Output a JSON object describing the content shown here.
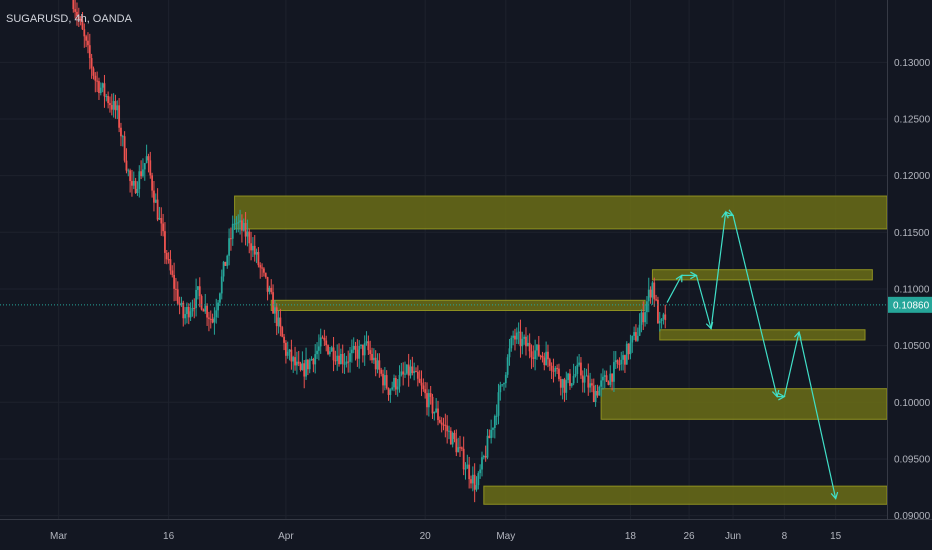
{
  "chart_data": {
    "type": "candlestick",
    "title": "SUGARUSD, 4h, OANDA",
    "ylim": [
      0.0897,
      0.1355
    ],
    "y_ticks": [
      "0.13000",
      "0.12500",
      "0.12000",
      "0.11500",
      "0.11000",
      "0.10500",
      "0.10000",
      "0.09500",
      "0.09000"
    ],
    "y_tick_values": [
      0.13,
      0.125,
      0.12,
      0.115,
      0.11,
      0.105,
      0.1,
      0.095,
      0.09
    ],
    "x_ticks": [
      "Mar",
      "16",
      "Apr",
      "20",
      "May",
      "18",
      "26",
      "Jun",
      "8",
      "15"
    ],
    "x_tick_dates": [
      "2020-03-01",
      "2020-03-16",
      "2020-04-01",
      "2020-04-20",
      "2020-05-01",
      "2020-05-18",
      "2020-05-26",
      "2020-06-01",
      "2020-06-08",
      "2020-06-15"
    ],
    "x_range": [
      "2020-02-22",
      "2020-06-22"
    ],
    "last_price": "0.10860",
    "last_price_value": 0.1086,
    "colors": {
      "background": "#131722",
      "up": "#26a69a",
      "down": "#ef5350",
      "zone_fill": "#6b6d16",
      "zone_stroke": "#8f9120",
      "projection": "#40e0c8",
      "price_line": "#26a69a"
    },
    "price_path": [
      [
        "2020-03-03",
        0.1355
      ],
      [
        "2020-03-06",
        0.1285
      ],
      [
        "2020-03-09",
        0.1255
      ],
      [
        "2020-03-11",
        0.1185
      ],
      [
        "2020-03-13",
        0.1215
      ],
      [
        "2020-03-16",
        0.112
      ],
      [
        "2020-03-18",
        0.1075
      ],
      [
        "2020-03-20",
        0.1095
      ],
      [
        "2020-03-22",
        0.1072
      ],
      [
        "2020-03-25",
        0.116
      ],
      [
        "2020-03-27",
        0.1145
      ],
      [
        "2020-03-30",
        0.109
      ],
      [
        "2020-04-01",
        0.1045
      ],
      [
        "2020-04-03",
        0.1025
      ],
      [
        "2020-04-06",
        0.1052
      ],
      [
        "2020-04-09",
        0.1038
      ],
      [
        "2020-04-12",
        0.1048
      ],
      [
        "2020-04-15",
        0.1012
      ],
      [
        "2020-04-18",
        0.1028
      ],
      [
        "2020-04-21",
        0.0995
      ],
      [
        "2020-04-24",
        0.0965
      ],
      [
        "2020-04-27",
        0.0925
      ],
      [
        "2020-04-29",
        0.0975
      ],
      [
        "2020-05-02",
        0.1058
      ],
      [
        "2020-05-05",
        0.1045
      ],
      [
        "2020-05-07",
        0.1038
      ],
      [
        "2020-05-09",
        0.1015
      ],
      [
        "2020-05-11",
        0.1028
      ],
      [
        "2020-05-13",
        0.1008
      ],
      [
        "2020-05-15",
        0.1022
      ],
      [
        "2020-05-17",
        0.1038
      ],
      [
        "2020-05-19",
        0.1062
      ],
      [
        "2020-05-21",
        0.1105
      ],
      [
        "2020-05-22",
        0.1065
      ],
      [
        "2020-05-23",
        0.1078
      ]
    ],
    "zones": [
      {
        "from": "2020-03-25",
        "to": "2020-06-22",
        "high": 0.1182,
        "low": 0.1153
      },
      {
        "from": "2020-05-21",
        "to": "2020-06-20",
        "high": 0.1117,
        "low": 0.1108
      },
      {
        "from": "2020-03-30",
        "to": "2020-05-20",
        "high": 0.109,
        "low": 0.1081
      },
      {
        "from": "2020-05-22",
        "to": "2020-06-19",
        "high": 0.1064,
        "low": 0.1055
      },
      {
        "from": "2020-05-14",
        "to": "2020-06-22",
        "high": 0.1012,
        "low": 0.0985
      },
      {
        "from": "2020-04-28",
        "to": "2020-06-22",
        "high": 0.0926,
        "low": 0.091
      }
    ],
    "projection_path": [
      [
        "2020-05-23",
        0.1088
      ],
      [
        "2020-05-25",
        0.1112
      ],
      [
        "2020-05-27",
        0.1112
      ],
      [
        "2020-05-29",
        0.1065
      ],
      [
        "2020-05-31",
        0.1168
      ],
      [
        "2020-06-01",
        0.1165
      ],
      [
        "2020-06-07",
        0.1005
      ],
      [
        "2020-06-08",
        0.1005
      ],
      [
        "2020-06-10",
        0.1062
      ],
      [
        "2020-06-15",
        0.0915
      ]
    ]
  }
}
